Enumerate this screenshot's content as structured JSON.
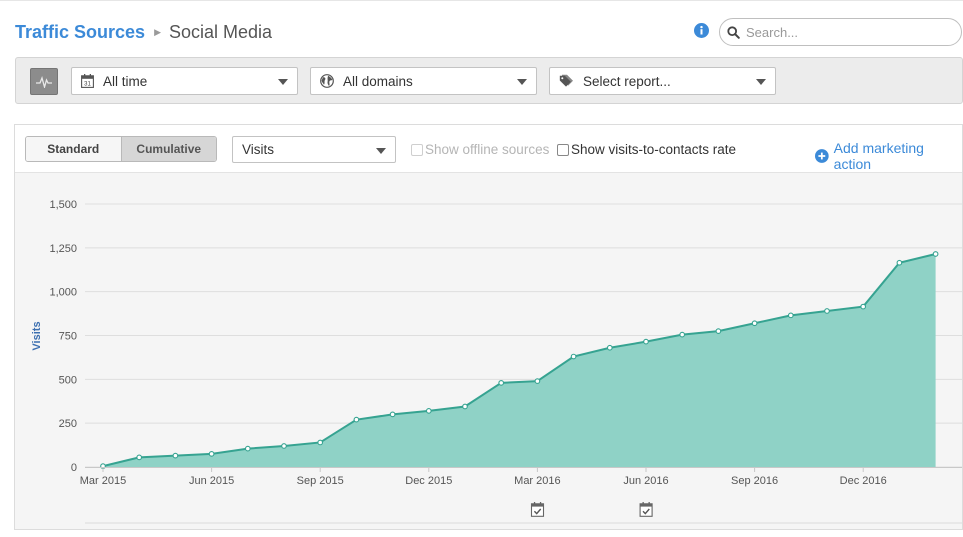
{
  "breadcrumb": {
    "parent": "Traffic Sources",
    "current": "Social Media"
  },
  "search": {
    "placeholder": "Search..."
  },
  "filters": {
    "date_range": "All time",
    "domains": "All domains",
    "report": "Select report...",
    "icons": {
      "pulse": "activity-pulse-icon",
      "date": "calendar-icon",
      "domains": "globe-icon",
      "report": "tag-icon"
    }
  },
  "chart_controls": {
    "standard_label": "Standard",
    "cumulative_label": "Cumulative",
    "active_mode": "Cumulative",
    "metric": "Visits",
    "offline_sources_label": "Show offline sources",
    "offline_sources_enabled": false,
    "contacts_rate_label": "Show visits-to-contacts rate",
    "contacts_rate_checked": false,
    "add_action_label": "Add marketing action"
  },
  "colors": {
    "link": "#3c8ad8",
    "area_fill": "#8fd2c6",
    "area_line": "#36a391"
  },
  "chart_data": {
    "type": "area",
    "title": "",
    "ylabel": "Visits",
    "ylim": [
      0,
      1500
    ],
    "yticks": [
      0,
      250,
      500,
      750,
      1000,
      1250,
      1500
    ],
    "ytick_labels": [
      "0",
      "250",
      "500",
      "750",
      "1,000",
      "1,250",
      "1,500"
    ],
    "x": [
      "2015-03",
      "2015-04",
      "2015-05",
      "2015-06",
      "2015-07",
      "2015-08",
      "2015-09",
      "2015-10",
      "2015-11",
      "2015-12",
      "2016-01",
      "2016-02",
      "2016-03",
      "2016-04",
      "2016-05",
      "2016-06",
      "2016-07",
      "2016-08",
      "2016-09",
      "2016-10",
      "2016-11",
      "2016-12",
      "2017-01",
      "2017-02"
    ],
    "xticks": [
      "2015-03",
      "2015-06",
      "2015-09",
      "2015-12",
      "2016-03",
      "2016-06",
      "2016-09",
      "2016-12"
    ],
    "xtick_labels": [
      "Mar 2015",
      "Jun 2015",
      "Sep 2015",
      "Dec 2015",
      "Mar 2016",
      "Jun 2016",
      "Sep 2016",
      "Dec 2016"
    ],
    "series": [
      {
        "values": [
          5,
          55,
          65,
          75,
          105,
          120,
          140,
          270,
          300,
          320,
          345,
          480,
          490,
          630,
          680,
          715,
          755,
          775,
          820,
          865,
          890,
          915,
          1165,
          1215
        ]
      }
    ],
    "grid": true,
    "legend": "none",
    "markers": [
      {
        "x": "2016-03",
        "icon": "calendar-check-icon"
      },
      {
        "x": "2016-06",
        "icon": "calendar-check-icon"
      }
    ]
  }
}
